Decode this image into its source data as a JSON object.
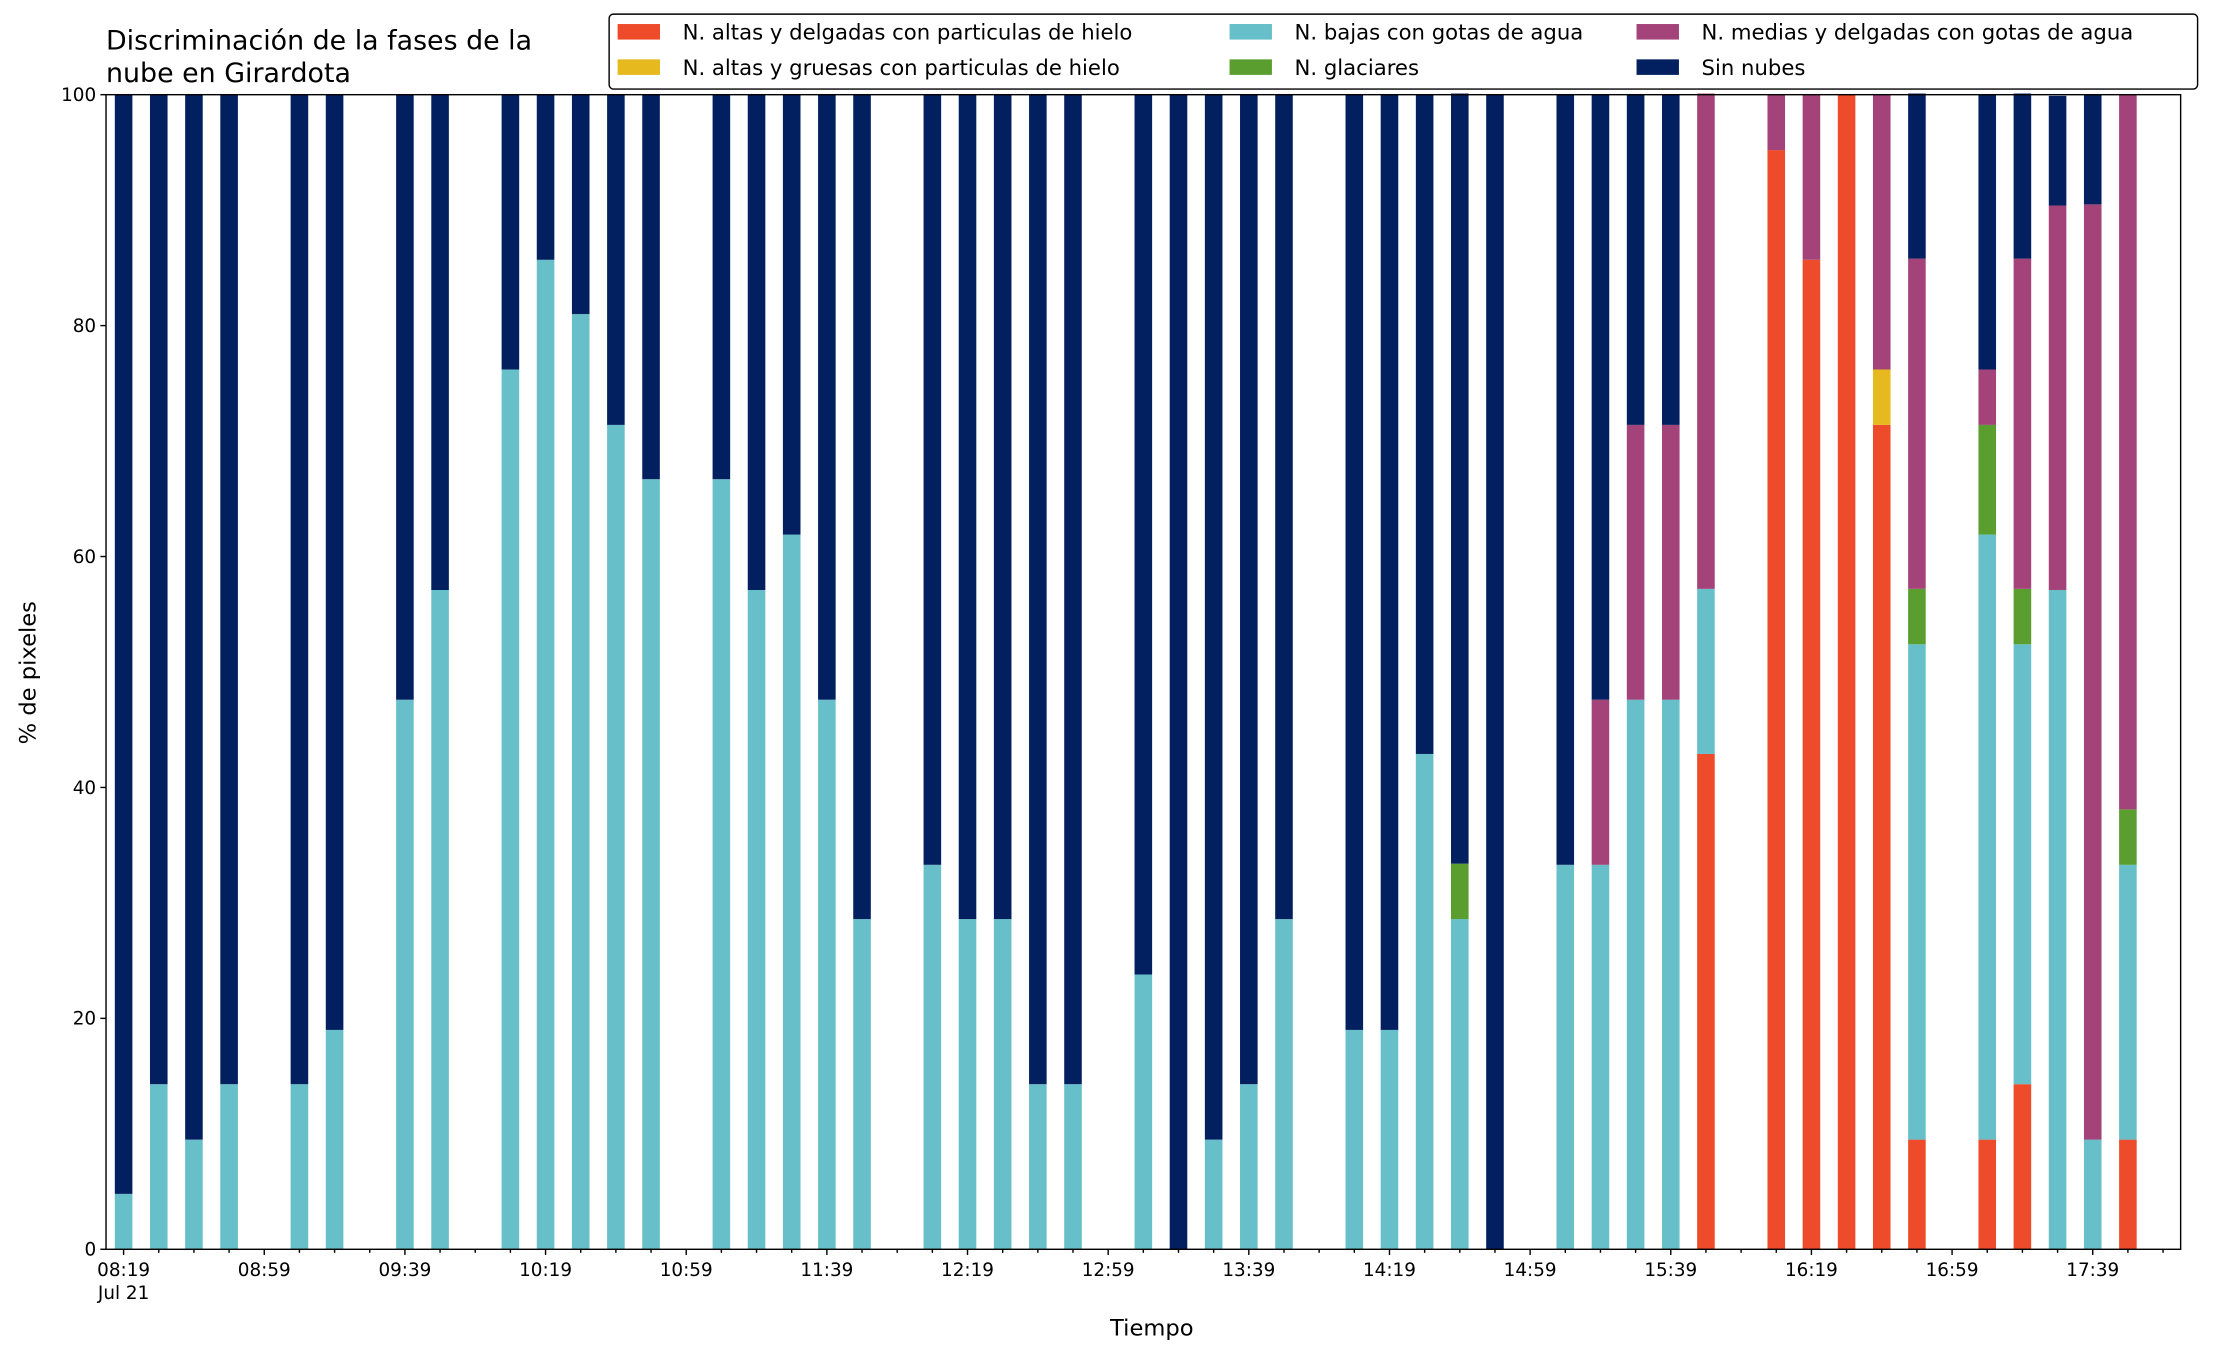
{
  "chart_data": {
    "type": "stacked_bar",
    "title": [
      "Discriminación de la fases de la",
      "nube en Girardota"
    ],
    "x_label": "Tiempo",
    "y_label": "% de pixeles",
    "x_sublabel": "Jul 21",
    "categories": [
      "08:19",
      null,
      null,
      null,
      "08:59",
      null,
      null,
      null,
      "09:39",
      null,
      null,
      null,
      "10:19",
      null,
      null,
      null,
      "10:59",
      null,
      null,
      null,
      "11:39",
      null,
      null,
      null,
      "12:19",
      null,
      null,
      null,
      "12:59",
      null,
      null,
      null,
      "13:39",
      null,
      null,
      null,
      "14:19",
      null,
      null,
      null,
      "14:59",
      null,
      null,
      null,
      "15:39",
      null,
      null,
      null,
      "16:19",
      null,
      null,
      null,
      "16:59",
      null,
      null,
      null,
      "17:39",
      null,
      null
    ],
    "series": [
      {
        "name": "N. altas y delgadas con particulas de hielo",
        "color": "#ee4b2b",
        "values": [
          0,
          0,
          0,
          0,
          null,
          0,
          0,
          null,
          0,
          0,
          null,
          0,
          0,
          0,
          0,
          0,
          null,
          0,
          0,
          0,
          0,
          0,
          null,
          0,
          0,
          0,
          0,
          0,
          null,
          0,
          0,
          0,
          0,
          0,
          null,
          0,
          0,
          0,
          0,
          0,
          null,
          0,
          0,
          0,
          0,
          42.9,
          null,
          95.2,
          85.7,
          100,
          71.4,
          9.5,
          null,
          9.5,
          14.3,
          0,
          0,
          9.5,
          null
        ]
      },
      {
        "name": "N. altas y gruesas con particulas de hielo",
        "color": "#e6b91e",
        "values": [
          0,
          0,
          0,
          0,
          null,
          0,
          0,
          null,
          0,
          0,
          null,
          0,
          0,
          0,
          0,
          0,
          null,
          0,
          0,
          0,
          0,
          0,
          null,
          0,
          0,
          0,
          0,
          0,
          null,
          0,
          0,
          0,
          0,
          0,
          null,
          0,
          0,
          0,
          0,
          0,
          null,
          0,
          0,
          0,
          0,
          0,
          null,
          0,
          0,
          0,
          4.8,
          0,
          null,
          0,
          0,
          0,
          0,
          0,
          null
        ]
      },
      {
        "name": "N. bajas con gotas de agua",
        "color": "#66bfc9",
        "values": [
          4.8,
          14.3,
          9.5,
          14.3,
          null,
          14.3,
          19.0,
          null,
          47.6,
          57.1,
          null,
          76.2,
          85.7,
          81.0,
          71.4,
          66.7,
          null,
          66.7,
          57.1,
          61.9,
          47.6,
          28.6,
          null,
          33.3,
          28.6,
          28.6,
          14.3,
          14.3,
          null,
          23.8,
          0,
          9.5,
          14.3,
          28.6,
          null,
          19.0,
          19.0,
          42.9,
          28.6,
          0,
          null,
          33.3,
          33.3,
          47.6,
          47.6,
          14.3,
          null,
          0,
          0,
          0,
          0,
          42.9,
          null,
          52.4,
          38.1,
          57.1,
          9.5,
          23.8,
          null
        ]
      },
      {
        "name": "N. glaciares",
        "color": "#5a9e2f",
        "values": [
          0,
          0,
          0,
          0,
          null,
          0,
          0,
          null,
          0,
          0,
          null,
          0,
          0,
          0,
          0,
          0,
          null,
          0,
          0,
          0,
          0,
          0,
          null,
          0,
          0,
          0,
          0,
          0,
          null,
          0,
          0,
          0,
          0,
          0,
          null,
          0,
          0,
          0,
          4.8,
          0,
          null,
          0,
          0,
          0,
          0,
          0,
          null,
          0,
          0,
          0,
          0,
          4.8,
          null,
          9.5,
          4.8,
          0,
          0,
          4.8,
          null
        ]
      },
      {
        "name": "N. medias y delgadas con gotas de agua",
        "color": "#a3437a",
        "values": [
          0,
          0,
          0,
          0,
          null,
          0,
          0,
          null,
          0,
          0,
          null,
          0,
          0,
          0,
          0,
          0,
          null,
          0,
          0,
          0,
          0,
          0,
          null,
          0,
          0,
          0,
          0,
          0,
          null,
          0,
          0,
          0,
          0,
          0,
          null,
          0,
          0,
          0,
          0,
          0,
          null,
          0,
          14.3,
          23.8,
          23.8,
          42.9,
          null,
          4.8,
          14.3,
          0,
          23.8,
          28.6,
          null,
          4.8,
          28.6,
          33.3,
          81.0,
          61.9,
          null
        ]
      },
      {
        "name": "Sin nubes",
        "color": "#02205f",
        "values": [
          95.2,
          85.7,
          90.5,
          85.7,
          null,
          85.7,
          81.0,
          null,
          52.4,
          42.9,
          null,
          23.8,
          14.3,
          19.0,
          28.6,
          33.3,
          null,
          33.3,
          42.9,
          38.1,
          52.4,
          71.4,
          null,
          66.7,
          71.4,
          71.4,
          85.7,
          85.7,
          null,
          76.2,
          100,
          90.5,
          85.7,
          71.4,
          null,
          81.0,
          81.0,
          57.1,
          66.7,
          100,
          null,
          66.7,
          52.4,
          28.6,
          28.6,
          0,
          null,
          0,
          0,
          0,
          0,
          14.3,
          null,
          23.8,
          14.3,
          9.5,
          9.5,
          0,
          null
        ]
      }
    ],
    "ylim": [
      0,
      100
    ],
    "yticks": [
      0,
      20,
      40,
      60,
      80,
      100
    ],
    "grid": false,
    "legend": "top",
    "legend_columns": 3
  }
}
